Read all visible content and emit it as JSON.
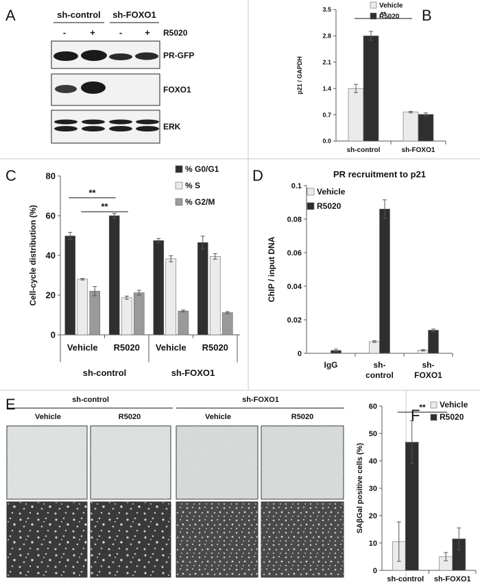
{
  "colors": {
    "dark": "#2f2f2f",
    "light": "#ebebeb",
    "mid": "#9a9a9a",
    "border": "#bfbfbf"
  },
  "panels": {
    "a": {
      "letter": "A",
      "groups": [
        "sh-control",
        "sh-FOXO1"
      ],
      "signs": [
        "-",
        "+",
        "-",
        "+"
      ],
      "treatment_label": "R5020",
      "blot_labels": [
        "PR-GFP",
        "FOXO1",
        "ERK"
      ]
    },
    "e": {
      "letter": "E",
      "groups": [
        "sh-control",
        "sh-FOXO1"
      ],
      "conditions": [
        "Vehicle",
        "R5020",
        "Vehicle",
        "R5020"
      ]
    }
  },
  "chart_data": [
    {
      "id": "B",
      "letter": "B",
      "type": "bar",
      "categories": [
        "sh-control",
        "sh-FOXO1"
      ],
      "series": [
        {
          "name": "Vehicle",
          "values": [
            1.4,
            0.77
          ],
          "errors": [
            0.11,
            0.02
          ]
        },
        {
          "name": "R5020",
          "values": [
            2.8,
            0.71
          ],
          "errors": [
            0.12,
            0.04
          ]
        }
      ],
      "title": "",
      "ylabel": "p21 / GAPDH",
      "ylim": [
        0,
        3.5
      ],
      "yticks": [
        "0.0",
        "0.7",
        "1.4",
        "2.1",
        "2.8",
        "3.5"
      ],
      "significance": [
        {
          "label": "**",
          "between": [
            [
              0,
              0
            ],
            [
              0,
              1
            ]
          ]
        }
      ],
      "legend": "top-right"
    },
    {
      "id": "C",
      "letter": "C",
      "type": "bar",
      "categories": [
        "Vehicle",
        "R5020",
        "Vehicle",
        "R5020"
      ],
      "category_groups": [
        {
          "label": "sh-control",
          "span": [
            0,
            1
          ]
        },
        {
          "label": "sh-FOXO1",
          "span": [
            2,
            3
          ]
        }
      ],
      "series": [
        {
          "name": "% G0/G1",
          "values": [
            49.8,
            60.0,
            47.5,
            46.5
          ],
          "errors": [
            1.8,
            1.2,
            1.0,
            3.2
          ]
        },
        {
          "name": "% S",
          "values": [
            28.0,
            18.7,
            38.3,
            39.5
          ],
          "errors": [
            0.4,
            0.8,
            1.5,
            1.4
          ]
        },
        {
          "name": "% G2/M",
          "values": [
            22.0,
            21.2,
            12.0,
            11.2
          ],
          "errors": [
            2.3,
            1.2,
            0.5,
            0.5
          ]
        }
      ],
      "title": "",
      "ylabel": "Cell-cycle distribution (%)",
      "ylim": [
        0,
        80
      ],
      "yticks": [
        "0",
        "20",
        "40",
        "60",
        "80"
      ],
      "significance": [
        {
          "label": "**",
          "between": [
            [
              0,
              0
            ],
            [
              0,
              1
            ]
          ]
        },
        {
          "label": "**",
          "between": [
            [
              1,
              0
            ],
            [
              1,
              1
            ]
          ]
        }
      ],
      "legend": "top-right"
    },
    {
      "id": "D",
      "letter": "D",
      "type": "bar",
      "categories": [
        "IgG",
        "sh-control",
        "sh-FOXO1"
      ],
      "category_lines": [
        [
          "IgG"
        ],
        [
          "sh-",
          "control"
        ],
        [
          "sh-",
          "FOXO1"
        ]
      ],
      "series": [
        {
          "name": "Vehicle",
          "values": [
            null,
            0.007,
            0.0018
          ],
          "errors": [
            null,
            0.0005,
            0.0004
          ]
        },
        {
          "name": "R5020",
          "values": [
            0.0017,
            0.086,
            0.0138
          ],
          "errors": [
            0.0008,
            0.0055,
            0.0007
          ]
        }
      ],
      "title": "PR recruitment to p21",
      "ylabel": "ChIP / input DNA",
      "ylim": [
        0,
        0.1
      ],
      "yticks": [
        "0",
        "0.02",
        "0.04",
        "0.06",
        "0.08",
        "0.1"
      ],
      "legend": "top-left"
    },
    {
      "id": "F",
      "letter": "F",
      "type": "bar",
      "categories": [
        "sh-control",
        "sh-FOXO1"
      ],
      "series": [
        {
          "name": "Vehicle",
          "values": [
            10.5,
            5.0
          ],
          "errors": [
            7.2,
            1.5
          ]
        },
        {
          "name": "R5020",
          "values": [
            46.8,
            11.5
          ],
          "errors": [
            7.8,
            4.0
          ]
        }
      ],
      "title": "",
      "ylabel": "SAβGal positive cells (%)",
      "ylim": [
        0,
        60
      ],
      "yticks": [
        "0",
        "10",
        "20",
        "30",
        "40",
        "50",
        "60"
      ],
      "significance": [
        {
          "label": "**",
          "between": [
            [
              0,
              0
            ],
            [
              0,
              1
            ]
          ]
        }
      ],
      "legend": "top-right"
    }
  ]
}
